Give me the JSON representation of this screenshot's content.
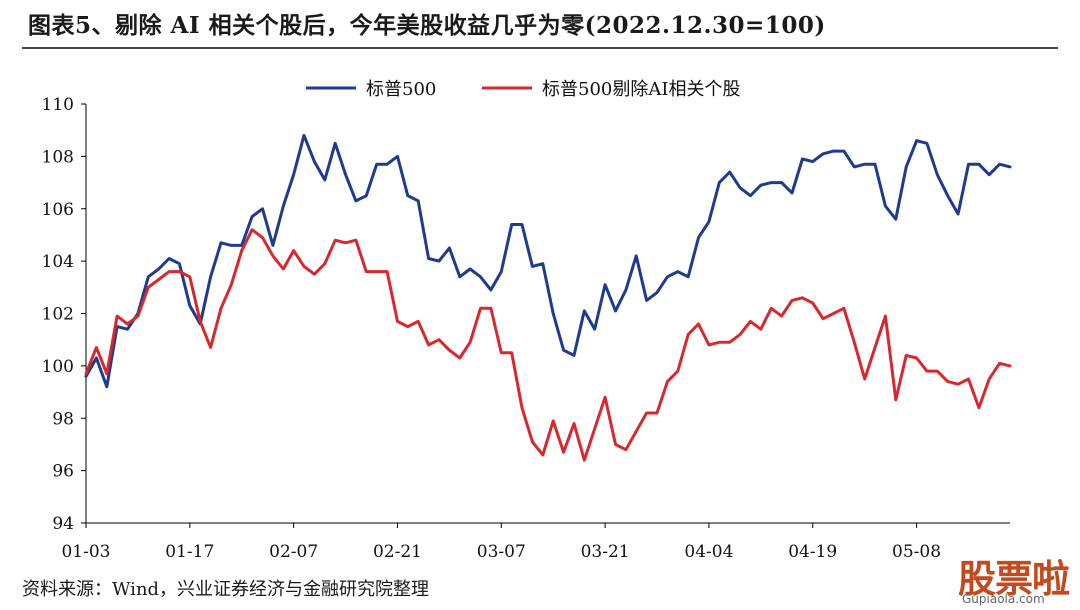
{
  "title": "图表5、剔除 AI 相关个股后，今年美股收益几乎为零(2022.12.30=100)",
  "source": "资料来源：Wind，兴业证券经济与金融研究院整理",
  "watermark": {
    "text": "股票啦",
    "subtext": "Gupiaola.com"
  },
  "colors": {
    "sp500": "#1f3a8f",
    "sp500_ex_ai": "#d8282f",
    "axis": "#000000",
    "rule": "#444444"
  },
  "chart_data": {
    "type": "line",
    "legend_position": "top-center",
    "grid": false,
    "ylim": [
      94,
      110
    ],
    "yticks": [
      94,
      96,
      98,
      100,
      102,
      104,
      106,
      108,
      110
    ],
    "xtick_labels": [
      "01-03",
      "01-17",
      "02-07",
      "02-21",
      "03-07",
      "03-21",
      "04-04",
      "04-19",
      "05-08"
    ],
    "xtick_index": [
      0,
      10,
      20,
      30,
      40,
      50,
      60,
      70,
      80
    ],
    "series": [
      {
        "name": "标普500",
        "color": "#1f3a8f",
        "values": [
          99.6,
          100.3,
          99.2,
          101.5,
          101.4,
          102.0,
          103.4,
          103.7,
          104.1,
          103.9,
          102.3,
          101.6,
          103.4,
          104.7,
          104.6,
          104.6,
          105.7,
          106.0,
          104.6,
          106.1,
          107.3,
          108.8,
          107.8,
          107.1,
          108.5,
          107.3,
          106.3,
          106.5,
          107.7,
          107.7,
          108.0,
          106.5,
          106.3,
          104.1,
          104.0,
          104.5,
          103.4,
          103.7,
          103.4,
          102.9,
          103.6,
          105.4,
          105.4,
          103.8,
          103.9,
          102.0,
          100.6,
          100.4,
          102.1,
          101.4,
          103.1,
          102.1,
          102.9,
          104.2,
          102.5,
          102.8,
          103.4,
          103.6,
          103.4,
          104.9,
          105.5,
          107.0,
          107.4,
          106.8,
          106.5,
          106.9,
          107.0,
          107.0,
          106.6,
          107.9,
          107.8,
          108.1,
          108.2,
          108.2,
          107.6,
          107.7,
          107.7,
          106.1,
          105.6,
          107.6,
          108.6,
          108.5,
          107.3,
          106.5,
          105.8,
          107.7,
          107.7,
          107.3,
          107.7,
          107.6
        ]
      },
      {
        "name": "标普500剔除AI相关个股",
        "color": "#d8282f",
        "values": [
          99.7,
          100.7,
          99.7,
          101.9,
          101.6,
          101.9,
          103.0,
          103.3,
          103.6,
          103.6,
          103.4,
          101.7,
          100.7,
          102.2,
          103.1,
          104.4,
          105.2,
          104.9,
          104.2,
          103.7,
          104.4,
          103.8,
          103.5,
          103.9,
          104.8,
          104.7,
          104.8,
          103.6,
          103.6,
          103.6,
          101.7,
          101.5,
          101.7,
          100.8,
          101.0,
          100.6,
          100.3,
          100.9,
          102.2,
          102.2,
          100.5,
          100.5,
          98.4,
          97.1,
          96.6,
          97.9,
          96.7,
          97.8,
          96.4,
          97.6,
          98.8,
          97.0,
          96.8,
          97.5,
          98.2,
          98.2,
          99.4,
          99.8,
          101.2,
          101.6,
          100.8,
          100.9,
          100.9,
          101.2,
          101.7,
          101.4,
          102.2,
          101.9,
          102.5,
          102.6,
          102.4,
          101.8,
          102.0,
          102.2,
          100.9,
          99.5,
          100.7,
          101.9,
          98.7,
          100.4,
          100.3,
          99.8,
          99.8,
          99.4,
          99.3,
          99.5,
          98.4,
          99.5,
          100.1,
          100.0
        ]
      }
    ]
  }
}
